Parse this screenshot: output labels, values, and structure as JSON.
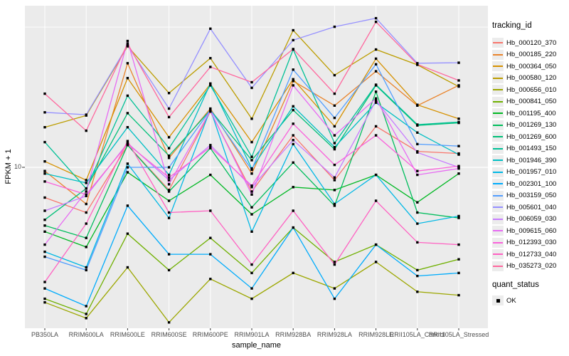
{
  "chart_data": {
    "type": "line",
    "title": "",
    "xlabel": "sample_name",
    "ylabel": "FPKM + 1",
    "yscale": "log10",
    "ytick_labels": [
      "10"
    ],
    "ylim_approx": [
      2.6,
      38
    ],
    "grid": true,
    "legend_position": "right",
    "marker": "black-square",
    "panel_bg": "#EBEBEB",
    "grid_color": "#FFFFFF",
    "categories": [
      "PB350LA",
      "RRIM600LA",
      "RRIM600LE",
      "RRIM600SE",
      "RRIM600PE",
      "RRIM901LA",
      "RRIM928BA",
      "RRIM928LA",
      "RRIM928LE",
      "RRII105LA_Control",
      "RRII105LA_Stressed"
    ],
    "legend": {
      "tracking_title": "tracking_id",
      "quant_title": "quant_status",
      "quant_entries": [
        "OK"
      ]
    },
    "series": [
      {
        "name": "Hb_000120_370",
        "color": "#F8766D",
        "values": [
          7.8,
          6.9,
          12.0,
          8.3,
          15.8,
          8.2,
          13.0,
          9.0,
          14.0,
          11.4,
          11.2
        ]
      },
      {
        "name": "Hb_000185_220",
        "color": "#EA842B",
        "values": [
          9.7,
          7.4,
          23.5,
          10.8,
          16.2,
          9.5,
          20.3,
          16.6,
          22.0,
          16.6,
          19.6
        ]
      },
      {
        "name": "Hb_000364_050",
        "color": "#D69100",
        "values": [
          10.5,
          9.0,
          20.8,
          12.8,
          19.8,
          12.3,
          20.6,
          14.0,
          24.4,
          16.7,
          14.9
        ]
      },
      {
        "name": "Hb_000580_120",
        "color": "#BC9D00",
        "values": [
          13.9,
          15.3,
          27.0,
          18.4,
          24.5,
          14.9,
          30.8,
          21.3,
          26.3,
          23.2,
          19.4
        ]
      },
      {
        "name": "Hb_000656_010",
        "color": "#9CA700",
        "values": [
          3.3,
          2.9,
          4.4,
          2.8,
          4.0,
          3.4,
          4.2,
          3.7,
          4.6,
          3.6,
          3.5
        ]
      },
      {
        "name": "Hb_000841_050",
        "color": "#6FB000",
        "values": [
          3.4,
          3.0,
          5.8,
          4.3,
          5.6,
          4.2,
          6.1,
          4.6,
          5.3,
          4.3,
          4.7
        ]
      },
      {
        "name": "Hb_001195_400",
        "color": "#00B823",
        "values": [
          5.9,
          5.2,
          9.6,
          7.6,
          9.4,
          6.8,
          8.5,
          8.3,
          9.4,
          7.5,
          9.5
        ]
      },
      {
        "name": "Hb_001269_130",
        "color": "#00BD5C",
        "values": [
          6.2,
          5.6,
          12.0,
          8.2,
          11.7,
          7.2,
          10.4,
          7.3,
          18.6,
          6.9,
          6.6
        ]
      },
      {
        "name": "Hb_001269_600",
        "color": "#00C078",
        "values": [
          6.5,
          8.4,
          15.6,
          11.0,
          16.0,
          10.6,
          16.0,
          11.6,
          19.6,
          14.1,
          14.4
        ]
      },
      {
        "name": "Hb_001493_150",
        "color": "#00C096",
        "values": [
          12.3,
          8.4,
          18.0,
          11.7,
          19.6,
          10.9,
          26.3,
          12.2,
          19.7,
          14.2,
          14.5
        ]
      },
      {
        "name": "Hb_001946_390",
        "color": "#00BFC4",
        "values": [
          9.5,
          8.8,
          13.9,
          9.4,
          19.9,
          9.9,
          16.5,
          11.8,
          17.0,
          13.3,
          11.1
        ]
      },
      {
        "name": "Hb_001957_010",
        "color": "#00B8E5",
        "values": [
          5.0,
          4.4,
          10.3,
          6.6,
          16.1,
          5.9,
          12.1,
          7.4,
          9.4,
          6.3,
          6.7
        ]
      },
      {
        "name": "Hb_002301_100",
        "color": "#00ACFC",
        "values": [
          3.7,
          3.2,
          7.3,
          4.9,
          4.9,
          3.7,
          6.1,
          3.4,
          5.3,
          4.1,
          4.2
        ]
      },
      {
        "name": "Hb_003159_050",
        "color": "#529EFF",
        "values": [
          4.8,
          4.3,
          10.0,
          10.0,
          16.0,
          9.8,
          22.3,
          15.0,
          23.3,
          12.1,
          11.9
        ]
      },
      {
        "name": "Hb_005601_040",
        "color": "#9590FF",
        "values": [
          15.7,
          15.4,
          27.2,
          16.2,
          31.2,
          19.2,
          28.4,
          31.7,
          34.0,
          23.5,
          23.6
        ]
      },
      {
        "name": "Hb_006059_030",
        "color": "#C77CFF",
        "values": [
          7.0,
          7.9,
          12.2,
          9.0,
          12.0,
          8.5,
          12.5,
          9.2,
          17.3,
          11.3,
          10.0
        ]
      },
      {
        "name": "Hb_009615_060",
        "color": "#E76BF3",
        "values": [
          5.3,
          8.2,
          28.2,
          8.7,
          15.9,
          8.0,
          19.6,
          13.0,
          17.6,
          9.4,
          9.9
        ]
      },
      {
        "name": "Hb_012393_030",
        "color": "#FA62DB",
        "values": [
          8.9,
          8.0,
          12.1,
          9.2,
          11.8,
          8.6,
          14.3,
          10.2,
          13.0,
          9.7,
          10.1
        ]
      },
      {
        "name": "Hb_012733_040",
        "color": "#FF61C2",
        "values": [
          3.9,
          6.3,
          12.4,
          6.9,
          7.0,
          4.5,
          7.0,
          4.5,
          7.6,
          5.4,
          5.3
        ]
      },
      {
        "name": "Hb_035273_020",
        "color": "#FF689E",
        "values": [
          18.3,
          13.5,
          27.6,
          15.1,
          22.8,
          20.1,
          26.4,
          18.3,
          33.0,
          23.3,
          20.4
        ]
      }
    ]
  }
}
